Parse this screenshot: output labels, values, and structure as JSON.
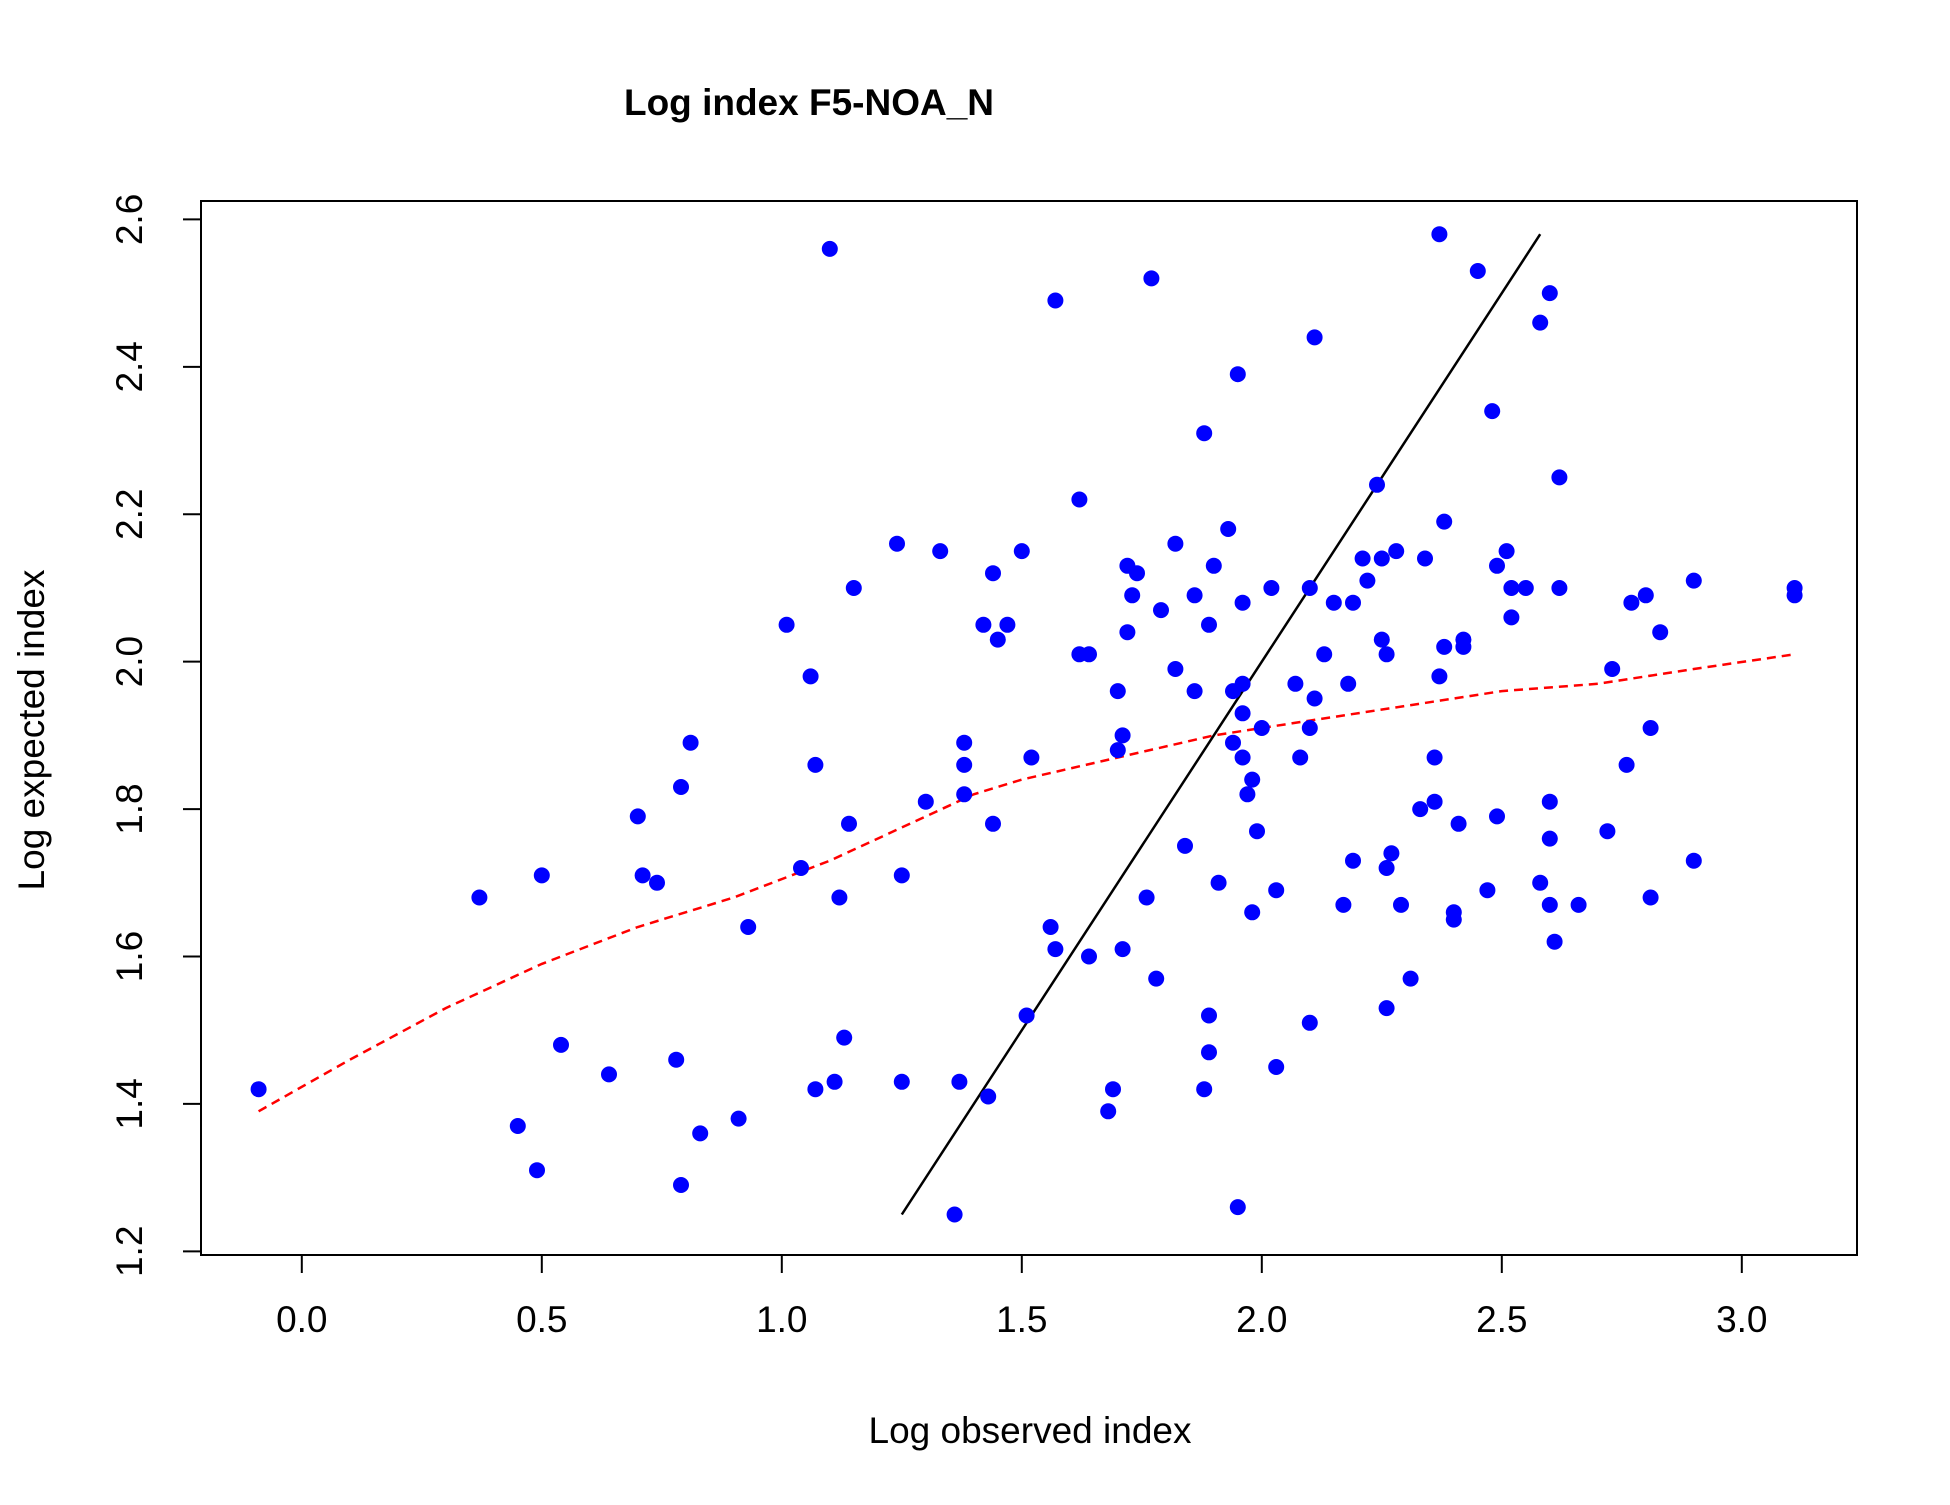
{
  "chart_data": {
    "type": "scatter",
    "title": "Log index F5-NOA_N",
    "xlabel": "Log observed index",
    "ylabel": "Log expected index",
    "xlim": [
      -0.21,
      3.24
    ],
    "ylim": [
      1.195,
      2.625
    ],
    "x_ticks": [
      0.0,
      0.5,
      1.0,
      1.5,
      2.0,
      2.5,
      3.0
    ],
    "x_tick_labels": [
      "0.0",
      "0.5",
      "1.0",
      "1.5",
      "2.0",
      "2.5",
      "3.0"
    ],
    "y_ticks": [
      1.2,
      1.4,
      1.6,
      1.8,
      2.0,
      2.2,
      2.4,
      2.6
    ],
    "y_tick_labels": [
      "1.2",
      "1.4",
      "1.6",
      "1.8",
      "2.0",
      "2.2",
      "2.4",
      "2.6"
    ],
    "grid": false,
    "legend": "none",
    "colors": {
      "points": "#0000ff",
      "smooth": "#ff0000",
      "reference": "#000000"
    },
    "series": [
      {
        "kind": "points",
        "points": [
          [
            -0.09,
            1.42
          ],
          [
            0.37,
            1.68
          ],
          [
            0.45,
            1.37
          ],
          [
            0.49,
            1.31
          ],
          [
            0.5,
            1.71
          ],
          [
            0.54,
            1.48
          ],
          [
            0.64,
            1.44
          ],
          [
            0.7,
            1.79
          ],
          [
            0.71,
            1.71
          ],
          [
            0.74,
            1.7
          ],
          [
            0.78,
            1.46
          ],
          [
            0.79,
            1.29
          ],
          [
            0.79,
            1.83
          ],
          [
            0.81,
            1.89
          ],
          [
            0.83,
            1.36
          ],
          [
            0.91,
            1.38
          ],
          [
            0.93,
            1.64
          ],
          [
            1.01,
            2.05
          ],
          [
            1.04,
            1.72
          ],
          [
            1.06,
            1.98
          ],
          [
            1.07,
            1.86
          ],
          [
            1.07,
            1.42
          ],
          [
            1.1,
            2.56
          ],
          [
            1.11,
            1.43
          ],
          [
            1.12,
            1.68
          ],
          [
            1.13,
            1.49
          ],
          [
            1.14,
            1.78
          ],
          [
            1.15,
            2.1
          ],
          [
            1.24,
            2.16
          ],
          [
            1.25,
            1.43
          ],
          [
            1.25,
            1.71
          ],
          [
            1.3,
            1.81
          ],
          [
            1.33,
            2.15
          ],
          [
            1.36,
            1.25
          ],
          [
            1.37,
            1.43
          ],
          [
            1.38,
            1.89
          ],
          [
            1.38,
            1.86
          ],
          [
            1.38,
            1.82
          ],
          [
            1.42,
            2.05
          ],
          [
            1.43,
            1.41
          ],
          [
            1.44,
            2.12
          ],
          [
            1.44,
            1.78
          ],
          [
            1.45,
            2.03
          ],
          [
            1.47,
            2.05
          ],
          [
            1.5,
            2.15
          ],
          [
            1.51,
            1.52
          ],
          [
            1.52,
            1.87
          ],
          [
            1.56,
            1.64
          ],
          [
            1.57,
            2.49
          ],
          [
            1.57,
            1.61
          ],
          [
            1.62,
            2.22
          ],
          [
            1.62,
            2.01
          ],
          [
            1.64,
            1.6
          ],
          [
            1.64,
            2.01
          ],
          [
            1.68,
            1.39
          ],
          [
            1.69,
            1.42
          ],
          [
            1.7,
            1.96
          ],
          [
            1.7,
            1.88
          ],
          [
            1.71,
            1.61
          ],
          [
            1.71,
            1.9
          ],
          [
            1.72,
            2.04
          ],
          [
            1.72,
            2.13
          ],
          [
            1.73,
            2.09
          ],
          [
            1.74,
            2.12
          ],
          [
            1.76,
            1.68
          ],
          [
            1.77,
            2.52
          ],
          [
            1.78,
            1.57
          ],
          [
            1.79,
            2.07
          ],
          [
            1.82,
            2.16
          ],
          [
            1.82,
            1.99
          ],
          [
            1.84,
            1.75
          ],
          [
            1.86,
            2.09
          ],
          [
            1.86,
            1.96
          ],
          [
            1.88,
            1.42
          ],
          [
            1.88,
            2.31
          ],
          [
            1.89,
            1.47
          ],
          [
            1.89,
            1.52
          ],
          [
            1.89,
            2.05
          ],
          [
            1.9,
            2.13
          ],
          [
            1.91,
            1.7
          ],
          [
            1.93,
            2.18
          ],
          [
            1.94,
            1.89
          ],
          [
            1.94,
            1.96
          ],
          [
            1.95,
            2.39
          ],
          [
            1.95,
            1.26
          ],
          [
            1.96,
            1.97
          ],
          [
            1.96,
            1.93
          ],
          [
            1.96,
            1.87
          ],
          [
            1.96,
            2.08
          ],
          [
            1.97,
            1.82
          ],
          [
            1.98,
            1.84
          ],
          [
            1.98,
            1.66
          ],
          [
            1.99,
            1.77
          ],
          [
            2.0,
            1.91
          ],
          [
            2.02,
            2.1
          ],
          [
            2.03,
            1.45
          ],
          [
            2.03,
            1.69
          ],
          [
            2.07,
            1.97
          ],
          [
            2.08,
            1.87
          ],
          [
            2.1,
            2.1
          ],
          [
            2.1,
            1.91
          ],
          [
            2.1,
            1.51
          ],
          [
            2.11,
            1.95
          ],
          [
            2.11,
            2.44
          ],
          [
            2.13,
            2.01
          ],
          [
            2.15,
            2.08
          ],
          [
            2.17,
            1.67
          ],
          [
            2.18,
            1.97
          ],
          [
            2.19,
            2.08
          ],
          [
            2.19,
            1.73
          ],
          [
            2.21,
            2.14
          ],
          [
            2.22,
            2.11
          ],
          [
            2.24,
            2.24
          ],
          [
            2.25,
            2.03
          ],
          [
            2.25,
            2.14
          ],
          [
            2.26,
            2.01
          ],
          [
            2.26,
            1.53
          ],
          [
            2.26,
            1.72
          ],
          [
            2.27,
            1.74
          ],
          [
            2.28,
            2.15
          ],
          [
            2.29,
            1.67
          ],
          [
            2.31,
            1.57
          ],
          [
            2.33,
            1.8
          ],
          [
            2.34,
            2.14
          ],
          [
            2.36,
            1.81
          ],
          [
            2.36,
            1.87
          ],
          [
            2.37,
            1.98
          ],
          [
            2.37,
            2.58
          ],
          [
            2.38,
            2.02
          ],
          [
            2.38,
            2.19
          ],
          [
            2.4,
            1.66
          ],
          [
            2.4,
            1.65
          ],
          [
            2.41,
            1.78
          ],
          [
            2.42,
            2.02
          ],
          [
            2.42,
            2.03
          ],
          [
            2.45,
            2.53
          ],
          [
            2.47,
            1.69
          ],
          [
            2.48,
            2.34
          ],
          [
            2.49,
            2.13
          ],
          [
            2.49,
            1.79
          ],
          [
            2.51,
            2.15
          ],
          [
            2.52,
            2.1
          ],
          [
            2.52,
            2.06
          ],
          [
            2.55,
            2.1
          ],
          [
            2.58,
            1.7
          ],
          [
            2.58,
            2.46
          ],
          [
            2.6,
            1.81
          ],
          [
            2.6,
            1.76
          ],
          [
            2.6,
            1.67
          ],
          [
            2.6,
            2.5
          ],
          [
            2.61,
            1.62
          ],
          [
            2.62,
            2.1
          ],
          [
            2.62,
            2.25
          ],
          [
            2.66,
            1.67
          ],
          [
            2.72,
            1.77
          ],
          [
            2.73,
            1.99
          ],
          [
            2.76,
            1.86
          ],
          [
            2.77,
            2.08
          ],
          [
            2.8,
            2.09
          ],
          [
            2.81,
            1.68
          ],
          [
            2.81,
            1.91
          ],
          [
            2.83,
            2.04
          ],
          [
            2.9,
            1.73
          ],
          [
            2.9,
            2.11
          ],
          [
            3.11,
            2.1
          ],
          [
            3.11,
            2.09
          ]
        ]
      },
      {
        "kind": "smooth",
        "points": [
          [
            -0.09,
            1.39
          ],
          [
            0.1,
            1.46
          ],
          [
            0.3,
            1.53
          ],
          [
            0.5,
            1.59
          ],
          [
            0.7,
            1.64
          ],
          [
            0.9,
            1.68
          ],
          [
            1.1,
            1.73
          ],
          [
            1.3,
            1.79
          ],
          [
            1.4,
            1.82
          ],
          [
            1.5,
            1.84
          ],
          [
            1.7,
            1.87
          ],
          [
            1.9,
            1.9
          ],
          [
            2.1,
            1.92
          ],
          [
            2.3,
            1.94
          ],
          [
            2.5,
            1.96
          ],
          [
            2.7,
            1.97
          ],
          [
            2.9,
            1.99
          ],
          [
            3.11,
            2.01
          ]
        ]
      },
      {
        "kind": "reference",
        "points": [
          [
            1.25,
            1.25
          ],
          [
            2.58,
            2.58
          ]
        ]
      }
    ]
  }
}
